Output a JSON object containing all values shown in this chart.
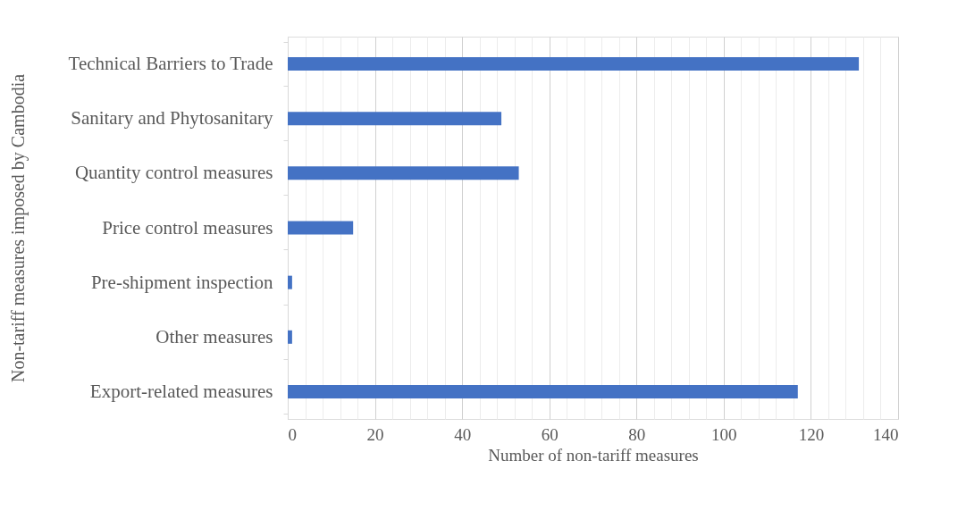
{
  "chart_data": {
    "type": "bar",
    "orientation": "horizontal",
    "xlabel": "Number of non-tariff measures",
    "ylabel": "Non-tariff measures imposed by Cambodia",
    "categories": [
      "Technical Barriers to Trade",
      "Sanitary and Phytosanitary",
      "Quantity control measures",
      "Price control measures",
      "Pre-shipment inspection",
      "Other measures",
      "Export-related measures"
    ],
    "values": [
      131,
      49,
      53,
      15,
      1,
      1,
      117
    ],
    "color": "#4472c4",
    "xlim": [
      0,
      140
    ],
    "xticks": [
      0,
      {
        "value": 4,
        "label": null
      },
      {
        "value": 8,
        "label": null
      },
      {
        "value": 12,
        "label": null
      },
      {
        "value": 16,
        "label": null
      },
      20,
      {
        "value": 24,
        "label": null
      },
      {
        "value": 28,
        "label": null
      },
      {
        "value": 32,
        "label": null
      },
      {
        "value": 36,
        "label": null
      },
      40,
      {
        "value": 44,
        "label": null
      },
      {
        "value": 48,
        "label": null
      },
      {
        "value": 52,
        "label": null
      },
      {
        "value": 56,
        "label": null
      },
      60,
      {
        "value": 64,
        "label": null
      },
      {
        "value": 68,
        "label": null
      },
      {
        "value": 72,
        "label": null
      },
      {
        "value": 76,
        "label": null
      },
      80,
      {
        "value": 84,
        "label": null
      },
      {
        "value": 88,
        "label": null
      },
      {
        "value": 92,
        "label": null
      },
      {
        "value": 96,
        "label": null
      },
      100,
      {
        "value": 104,
        "label": null
      },
      {
        "value": 108,
        "label": null
      },
      {
        "value": 112,
        "label": null
      },
      {
        "value": 116,
        "label": null
      },
      120,
      {
        "value": 124,
        "label": null
      },
      {
        "value": 128,
        "label": null
      },
      {
        "value": 132,
        "label": null
      },
      {
        "value": 136,
        "label": null
      },
      140
    ],
    "grid": "x"
  }
}
